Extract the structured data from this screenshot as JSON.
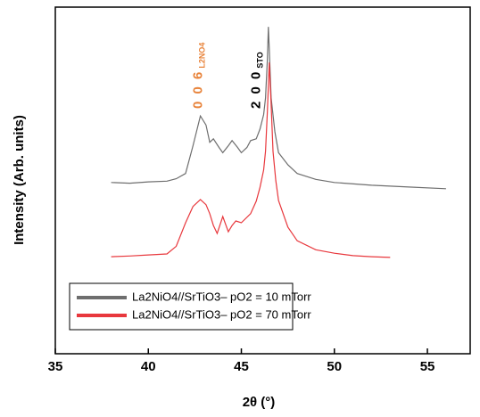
{
  "chart_data": {
    "type": "line",
    "xlabel": "2θ (°)",
    "ylabel": "Intensity (Arb. units)",
    "xlim": [
      35,
      57.3
    ],
    "ylim": [
      0,
      100
    ],
    "xticks": [
      35,
      40,
      45,
      50,
      55
    ],
    "legend": "lower left",
    "annotations": [
      {
        "text": "0 0 6",
        "sub": "L2NO4",
        "color": "#e8833a",
        "x": 42.9
      },
      {
        "text": "2 0 0",
        "sub": "STO",
        "color": "#000000",
        "x": 46.0
      }
    ],
    "series": [
      {
        "name": "La2NiO4//SrTiO3– pO2 = 10 mTorr",
        "color": "#6e6e6e",
        "x": [
          38,
          39,
          40,
          41,
          41.5,
          42,
          42.4,
          42.8,
          43.1,
          43.3,
          43.5,
          43.8,
          44,
          44.3,
          44.5,
          44.8,
          45,
          45.3,
          45.5,
          45.8,
          46,
          46.2,
          46.3,
          46.4,
          46.45,
          46.5,
          46.6,
          46.8,
          47,
          47.5,
          48,
          49,
          50,
          52,
          54,
          56
        ],
        "values": [
          49.4,
          49.2,
          49.6,
          49.8,
          50.5,
          52,
          60,
          68.6,
          66,
          61,
          62,
          59.5,
          58,
          60,
          61.5,
          59.5,
          58,
          59.5,
          61.5,
          62,
          64.8,
          69,
          73.8,
          85,
          94.3,
          88,
          73.8,
          64,
          58,
          54.5,
          52,
          50.3,
          49.4,
          48.6,
          48.1,
          47.6
        ]
      },
      {
        "name": "La2NiO4//SrTiO3– pO2 = 70 mTorr",
        "color": "#e8383d",
        "x": [
          38,
          39,
          40,
          41,
          41.5,
          42,
          42.4,
          42.8,
          43.1,
          43.3,
          43.5,
          43.7,
          44,
          44.3,
          44.5,
          44.7,
          45,
          45.5,
          45.8,
          46,
          46.2,
          46.3,
          46.4,
          46.5,
          46.6,
          46.7,
          46.85,
          47,
          47.5,
          48,
          49,
          50,
          51,
          52,
          53
        ],
        "values": [
          28,
          28.2,
          28.5,
          28.8,
          31,
          37.8,
          42.5,
          44.5,
          43,
          40.4,
          37,
          34.7,
          39.6,
          35.2,
          37,
          38.3,
          37.8,
          40.4,
          44,
          48,
          53,
          58.4,
          70,
          84,
          72,
          58.4,
          50,
          44.2,
          36.5,
          32.6,
          30,
          29,
          28.3,
          28,
          27.8
        ]
      }
    ]
  }
}
